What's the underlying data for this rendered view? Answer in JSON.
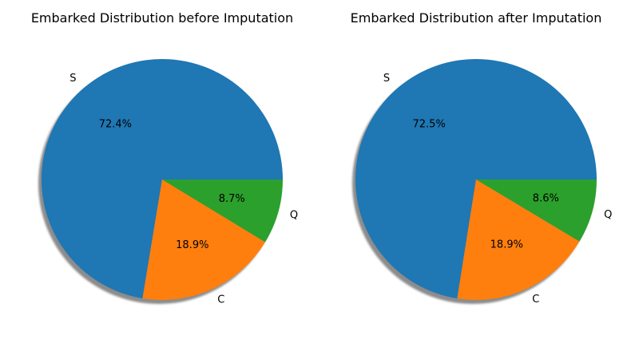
{
  "chart_data": [
    {
      "type": "pie",
      "title": "Embarked Distribution before Imputation",
      "shadow": true,
      "start_angle_deg": 0,
      "direction": "counterclockwise",
      "slices": [
        {
          "label": "S",
          "value": 72.4,
          "pct_label": "72.4%",
          "color": "#1f77b4"
        },
        {
          "label": "C",
          "value": 18.9,
          "pct_label": "18.9%",
          "color": "#ff7f0e"
        },
        {
          "label": "Q",
          "value": 8.7,
          "pct_label": "8.7%",
          "color": "#2ca02c"
        }
      ]
    },
    {
      "type": "pie",
      "title": "Embarked Distribution after Imputation",
      "shadow": true,
      "start_angle_deg": 0,
      "direction": "counterclockwise",
      "slices": [
        {
          "label": "S",
          "value": 72.5,
          "pct_label": "72.5%",
          "color": "#1f77b4"
        },
        {
          "label": "C",
          "value": 18.9,
          "pct_label": "18.9%",
          "color": "#ff7f0e"
        },
        {
          "label": "Q",
          "value": 8.6,
          "pct_label": "8.6%",
          "color": "#2ca02c"
        }
      ]
    }
  ]
}
